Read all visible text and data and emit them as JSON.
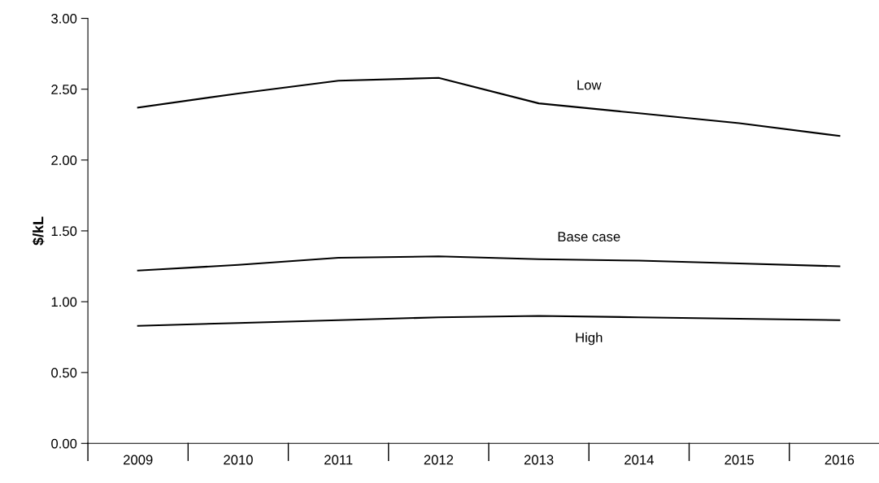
{
  "chart_data": {
    "type": "line",
    "ylabel": "$/kL",
    "categories": [
      "2009",
      "2010",
      "2011",
      "2012",
      "2013",
      "2014",
      "2015",
      "2016"
    ],
    "series": [
      {
        "name": "Low",
        "color": "#000000",
        "values": [
          2.37,
          2.47,
          2.56,
          2.58,
          2.4,
          2.33,
          2.26,
          2.17
        ]
      },
      {
        "name": "Base case",
        "color": "#000000",
        "values": [
          1.22,
          1.26,
          1.31,
          1.32,
          1.3,
          1.29,
          1.27,
          1.25
        ]
      },
      {
        "name": "High",
        "color": "#000000",
        "values": [
          0.83,
          0.85,
          0.87,
          0.89,
          0.9,
          0.89,
          0.88,
          0.87
        ]
      }
    ],
    "ylim": [
      0,
      3
    ],
    "yticks": [
      {
        "value": 0,
        "label": "0.00"
      },
      {
        "value": 0.5,
        "label": "0.50"
      },
      {
        "value": 1,
        "label": "1.00"
      },
      {
        "value": 1.5,
        "label": "1.50"
      },
      {
        "value": 2,
        "label": "2.00"
      },
      {
        "value": 2.5,
        "label": "2.50"
      },
      {
        "value": 3,
        "label": "3.00"
      }
    ],
    "grid": false,
    "legend": false,
    "marker": "none",
    "line_style": "solid"
  }
}
